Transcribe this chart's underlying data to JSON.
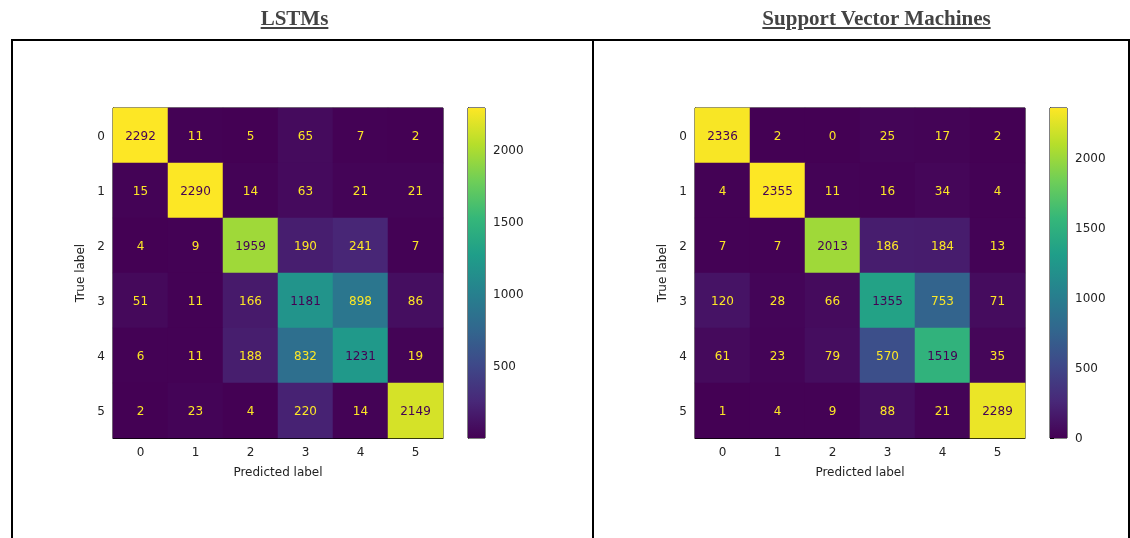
{
  "chart_data": [
    {
      "type": "heatmap",
      "title": "LSTMs",
      "xlabel": "Predicted label",
      "ylabel": "True label",
      "categories": [
        "0",
        "1",
        "2",
        "3",
        "4",
        "5"
      ],
      "y_categories": [
        "0",
        "1",
        "2",
        "3",
        "4",
        "5"
      ],
      "cells": [
        [
          2292,
          11,
          5,
          65,
          7,
          2
        ],
        [
          15,
          2290,
          14,
          63,
          21,
          21
        ],
        [
          4,
          9,
          1959,
          190,
          241,
          7
        ],
        [
          51,
          11,
          166,
          1181,
          898,
          86
        ],
        [
          6,
          11,
          188,
          832,
          1231,
          19
        ],
        [
          2,
          23,
          4,
          220,
          14,
          2149
        ]
      ],
      "clim": [
        2,
        2292
      ],
      "cticks": [
        500,
        1000,
        1500,
        2000
      ],
      "data_labels": true
    },
    {
      "type": "heatmap",
      "title": "Support Vector Machines",
      "xlabel": "Predicted label",
      "ylabel": "True label",
      "categories": [
        "0",
        "1",
        "2",
        "3",
        "4",
        "5"
      ],
      "y_categories": [
        "0",
        "1",
        "2",
        "3",
        "4",
        "5"
      ],
      "cells": [
        [
          2336,
          2,
          0,
          25,
          17,
          2
        ],
        [
          4,
          2355,
          11,
          16,
          34,
          4
        ],
        [
          7,
          7,
          2013,
          186,
          184,
          13
        ],
        [
          120,
          28,
          66,
          1355,
          753,
          71
        ],
        [
          61,
          23,
          79,
          570,
          1519,
          35
        ],
        [
          1,
          4,
          9,
          88,
          21,
          2289
        ]
      ],
      "clim": [
        0,
        2355
      ],
      "cticks": [
        0,
        500,
        1000,
        1500,
        2000
      ],
      "data_labels": true
    }
  ]
}
